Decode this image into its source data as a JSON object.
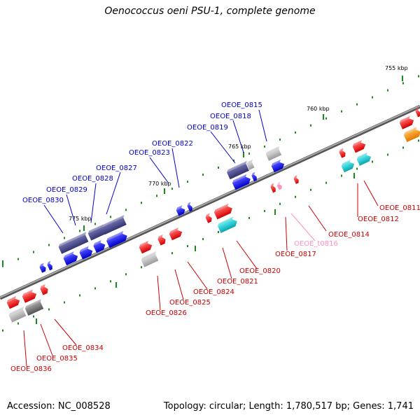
{
  "title": "Oenococcus oeni PSU-1, complete genome",
  "footer": {
    "accession": "Accession: NC_008528",
    "topology": "Topology: circular; Length: 1,780,517 bp; Genes: 1,741"
  },
  "colors": {
    "backbone": "#808080",
    "forward_gene": "#0000ff",
    "forward_dark": "#4b4b8c",
    "reverse_gene": "#ff0000",
    "reverse_cyan": "#10c8d0",
    "rna_pink": "#ff8fc0",
    "orange": "#ff8c00",
    "gray_gene": "#b0b0b0",
    "dark_gray_gene": "#707070",
    "tick": "#1a8a1a"
  },
  "ruler_labels": [
    "755 kbp",
    "760 kbp",
    "765 kbp",
    "770 kbp",
    "775 kbp"
  ],
  "forward_labels": [
    "OEOE_0815",
    "OEOE_0818",
    "OEOE_0819",
    "OEOE_0822",
    "OEOE_0823",
    "OEOE_0827",
    "OEOE_0828",
    "OEOE_0829",
    "OEOE_0830"
  ],
  "reverse_labels": [
    "OEOE_0811",
    "OEOE_0812",
    "OEOE_0814",
    "OEOE_t0816",
    "OEOE_0817",
    "OEOE_0820",
    "OEOE_0821",
    "OEOE_0824",
    "OEOE_0825",
    "OEOE_0826",
    "OEOE_0834",
    "OEOE_0835",
    "OEOE_0836"
  ]
}
